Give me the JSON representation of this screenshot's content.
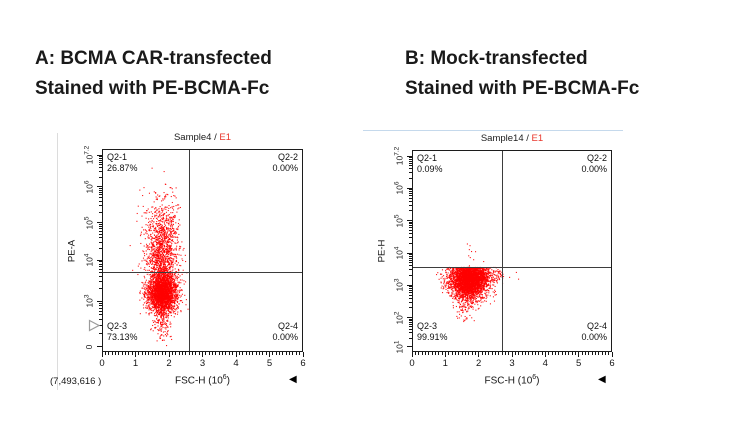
{
  "page": {
    "background": "#ffffff"
  },
  "chart_data": [
    {
      "type": "scatter",
      "panel": "A",
      "caption_line1": "A: BCMA CAR-transfected",
      "caption_line2": "Stained with PE-BCMA-Fc",
      "plot_title": {
        "sample": "Sample4 / ",
        "gate": "E1",
        "gate_color": "#e8352a"
      },
      "x_axis": {
        "label": "FSC-H",
        "unit_base": "10",
        "unit_exp": "6",
        "ticks": [
          "0",
          "1",
          "2",
          "3",
          "4",
          "5",
          "6"
        ],
        "range": [
          0,
          6000000
        ]
      },
      "y_axis": {
        "label": "PE-A",
        "scale": "biexponential",
        "ticks": [
          {
            "base": "10",
            "exp": "7.2",
            "frac": 0.03
          },
          {
            "base": "10",
            "exp": "6",
            "frac": 0.187
          },
          {
            "base": "10",
            "exp": "5",
            "frac": 0.364
          },
          {
            "base": "10",
            "exp": "4",
            "frac": 0.547
          },
          {
            "base": "10",
            "exp": "3",
            "frac": 0.749
          },
          {
            "base": "0",
            "exp": "",
            "frac": 0.975
          }
        ]
      },
      "quadrants": [
        {
          "name": "Q2-1",
          "pct": "26.87%"
        },
        {
          "name": "Q2-2",
          "pct": "0.00%"
        },
        {
          "name": "Q2-3",
          "pct": "73.13%"
        },
        {
          "name": "Q2-4",
          "pct": "0.00%"
        }
      ],
      "gate": {
        "vline_frac": 0.433,
        "hline_frac": 0.606
      },
      "event_count": "(7,493,616 )",
      "nav_arrow": "◀",
      "has_axis_marker": true,
      "dot_color": "#ff0000",
      "clusters": [
        {
          "cx": 0.3,
          "cy": 0.715,
          "sx": 0.038,
          "sy": 0.05,
          "n": 2600
        },
        {
          "cx": 0.3,
          "cy": 0.505,
          "sx": 0.042,
          "sy": 0.105,
          "n": 1300
        },
        {
          "cx": 0.3,
          "cy": 0.875,
          "sx": 0.026,
          "sy": 0.045,
          "n": 130
        },
        {
          "cx": 0.302,
          "cy": 0.3,
          "sx": 0.05,
          "sy": 0.07,
          "n": 70
        }
      ]
    },
    {
      "type": "scatter",
      "panel": "B",
      "caption_line1": "B: Mock-transfected",
      "caption_line2": "Stained with PE-BCMA-Fc",
      "plot_title": {
        "sample": "Sample14 / ",
        "gate": "E1",
        "gate_color": "#e8352a"
      },
      "x_axis": {
        "label": "FSC-H",
        "unit_base": "10",
        "unit_exp": "6",
        "ticks": [
          "0",
          "1",
          "2",
          "3",
          "4",
          "5",
          "6"
        ],
        "range": [
          0,
          6000000
        ]
      },
      "y_axis": {
        "label": "PE-H",
        "scale": "biexponential",
        "ticks": [
          {
            "base": "10",
            "exp": "7.2",
            "frac": 0.03
          },
          {
            "base": "10",
            "exp": "6",
            "frac": 0.19
          },
          {
            "base": "10",
            "exp": "5",
            "frac": 0.35
          },
          {
            "base": "10",
            "exp": "4",
            "frac": 0.51
          },
          {
            "base": "10",
            "exp": "3",
            "frac": 0.67
          },
          {
            "base": "10",
            "exp": "2",
            "frac": 0.83
          },
          {
            "base": "10",
            "exp": "1",
            "frac": 0.975
          }
        ]
      },
      "quadrants": [
        {
          "name": "Q2-1",
          "pct": "0.09%"
        },
        {
          "name": "Q2-2",
          "pct": "0.00%"
        },
        {
          "name": "Q2-3",
          "pct": "99.91%"
        },
        {
          "name": "Q2-4",
          "pct": "0.00%"
        }
      ],
      "gate": {
        "vline_frac": 0.45,
        "hline_frac": 0.579
      },
      "event_count": "",
      "nav_arrow": "◀",
      "has_axis_marker": false,
      "dot_color": "#ff0000",
      "clusters": [
        {
          "cx": 0.285,
          "cy": 0.66,
          "sx": 0.048,
          "sy": 0.042,
          "n": 2800,
          "clamp_top": 0.585
        },
        {
          "cx": 0.3,
          "cy": 0.622,
          "sx": 0.062,
          "sy": 0.022,
          "n": 900,
          "clamp_top": 0.585
        },
        {
          "cx": 0.265,
          "cy": 0.775,
          "sx": 0.028,
          "sy": 0.035,
          "n": 90
        },
        {
          "cx": 0.3,
          "cy": 0.525,
          "sx": 0.03,
          "sy": 0.028,
          "n": 10
        }
      ]
    }
  ]
}
